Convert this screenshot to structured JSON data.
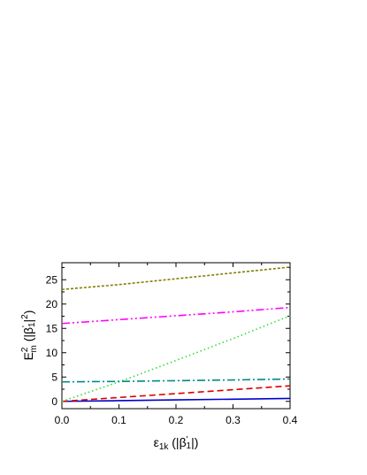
{
  "chart_data": {
    "type": "line",
    "title": "",
    "xlabel": {
      "main": "ε",
      "sub": "1k",
      "rest": " (|β",
      "sup": "'",
      "sub2": "1",
      "tail": "|)"
    },
    "ylabel": {
      "main": "E",
      "sup": "2",
      "sub": "m",
      "rest": " (|β",
      "sup2": "'",
      "sub2": "1",
      "tail": "|",
      "sup3": "2",
      "tail2": ")"
    },
    "xlim": [
      0,
      0.4
    ],
    "ylim": [
      -1.5,
      28.5
    ],
    "xticks": [
      0.0,
      0.1,
      0.2,
      0.3,
      0.4
    ],
    "xtick_labels": [
      "0.0",
      "0.1",
      "0.2",
      "0.3",
      "0.4"
    ],
    "yticks": [
      0,
      5,
      10,
      15,
      20,
      25
    ],
    "ytick_labels": [
      "0",
      "5",
      "10",
      "15",
      "20",
      "25"
    ],
    "grid": false,
    "legend": "none",
    "series": [
      {
        "color": "#0000cc",
        "dash": "solid",
        "x": [
          0,
          0.1,
          0.2,
          0.3,
          0.4
        ],
        "y": [
          0.0,
          0.15,
          0.3,
          0.45,
          0.6
        ]
      },
      {
        "color": "#dd0000",
        "dash": "dashed",
        "x": [
          0,
          0.1,
          0.2,
          0.3,
          0.4
        ],
        "y": [
          0.0,
          0.8,
          1.6,
          2.4,
          3.2
        ]
      },
      {
        "color": "#33dd33",
        "dash": "dotted",
        "x": [
          0,
          0.1,
          0.2,
          0.3,
          0.4
        ],
        "y": [
          0.0,
          4.0,
          8.4,
          12.9,
          17.6
        ]
      },
      {
        "color": "#008888",
        "dash": "dashdot",
        "x": [
          0,
          0.1,
          0.2,
          0.3,
          0.4
        ],
        "y": [
          4.0,
          4.1,
          4.25,
          4.4,
          4.6
        ]
      },
      {
        "color": "#ff00ff",
        "dash": "dashdotdot",
        "x": [
          0,
          0.1,
          0.2,
          0.3,
          0.4
        ],
        "y": [
          16.0,
          16.8,
          17.6,
          18.4,
          19.3
        ]
      },
      {
        "color": "#808000",
        "dash": "shortdash",
        "x": [
          0,
          0.1,
          0.2,
          0.3,
          0.4
        ],
        "y": [
          23.0,
          24.0,
          25.2,
          26.4,
          27.6
        ]
      }
    ]
  }
}
